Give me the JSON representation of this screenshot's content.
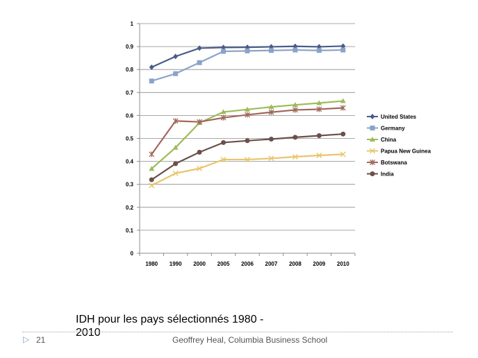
{
  "chart_data": {
    "type": "line",
    "categories": [
      "1980",
      "1990",
      "2000",
      "2005",
      "2006",
      "2007",
      "2008",
      "2009",
      "2010"
    ],
    "ylim": [
      0,
      1
    ],
    "yticks": [
      "0",
      "0.1",
      "0.2",
      "0.3",
      "0.4",
      "0.5",
      "0.6",
      "0.7",
      "0.8",
      "0.9",
      "1"
    ],
    "grid": true,
    "legend_position": "right",
    "series": [
      {
        "name": "United States",
        "marker": "diamond",
        "color": "#4a5b87",
        "values": [
          0.81,
          0.857,
          0.893,
          0.896,
          0.897,
          0.899,
          0.901,
          0.899,
          0.902
        ]
      },
      {
        "name": "Germany",
        "marker": "square",
        "color": "#8aa3c8",
        "values": [
          0.75,
          0.782,
          0.83,
          0.879,
          0.881,
          0.883,
          0.885,
          0.883,
          0.885
        ]
      },
      {
        "name": "China",
        "marker": "triangle",
        "color": "#9dbb59",
        "values": [
          0.368,
          0.46,
          0.568,
          0.615,
          0.626,
          0.637,
          0.646,
          0.654,
          0.663
        ]
      },
      {
        "name": "Papua New Guinea",
        "marker": "x",
        "color": "#e9c46a",
        "values": [
          0.295,
          0.348,
          0.369,
          0.408,
          0.408,
          0.413,
          0.42,
          0.426,
          0.431
        ]
      },
      {
        "name": "Botswana",
        "marker": "star",
        "color": "#a0675a",
        "values": [
          0.431,
          0.576,
          0.572,
          0.59,
          0.603,
          0.614,
          0.624,
          0.627,
          0.633
        ]
      },
      {
        "name": "India",
        "marker": "circle",
        "color": "#6b5049",
        "values": [
          0.32,
          0.39,
          0.44,
          0.482,
          0.49,
          0.497,
          0.505,
          0.512,
          0.519
        ]
      }
    ]
  },
  "slide": {
    "caption": "IDH pour les pays sélectionnés 1980 - 2010",
    "page_number": "21",
    "footer": "Geoffrey Heal,  Columbia Business School",
    "arrow_glyph": "▷"
  }
}
